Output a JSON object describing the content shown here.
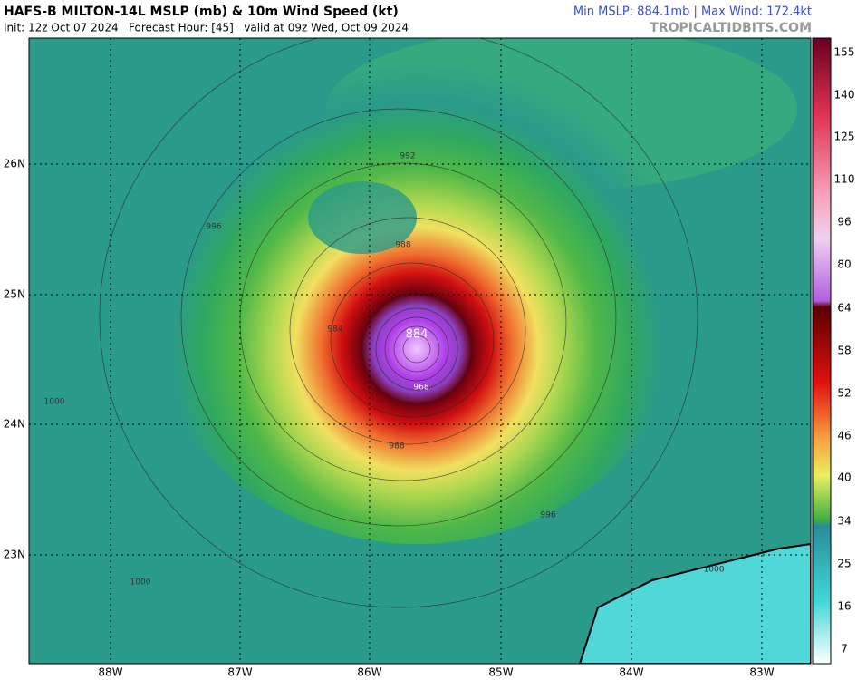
{
  "header": {
    "title": "HAFS-B MILTON-14L MSLP (mb) & 10m Wind Speed (kt)",
    "subtitle": "Init: 12z Oct 07 2024   Forecast Hour: [45]   valid at 09z Wed, Oct 09 2024",
    "stats": "Min MSLP: 884.1mb | Max Wind: 172.4kt",
    "source": "TROPICALTIDBITS.COM"
  },
  "map": {
    "lat_labels": [
      "26N",
      "25N",
      "24N",
      "23N"
    ],
    "lon_labels": [
      "88W",
      "87W",
      "86W",
      "85W",
      "84W",
      "83W"
    ],
    "contour_labels": [
      "884",
      "988",
      "992",
      "996",
      "1000",
      "968",
      "984",
      "988",
      "996",
      "1000",
      "1000"
    ]
  },
  "colorbar": {
    "labels": [
      "155",
      "140",
      "125",
      "110",
      "96",
      "80",
      "64",
      "58",
      "52",
      "46",
      "40",
      "34",
      "25",
      "16",
      "7"
    ]
  }
}
